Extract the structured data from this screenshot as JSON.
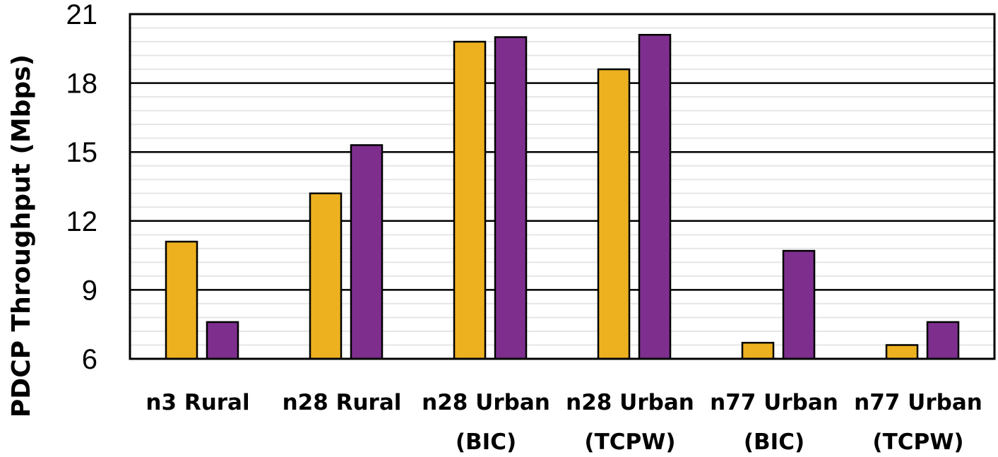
{
  "chart_data": {
    "type": "bar",
    "title": "",
    "xlabel": "",
    "ylabel": "PDCP Throughput (Mbps)",
    "ylim": [
      6,
      21
    ],
    "yticks": [
      6,
      9,
      12,
      15,
      18,
      21
    ],
    "categories": [
      [
        "n3 Rural"
      ],
      [
        "n28 Rural"
      ],
      [
        "n28 Urban",
        "(BIC)"
      ],
      [
        "n28 Urban",
        "(TCPW)"
      ],
      [
        "n77 Urban",
        "(BIC)"
      ],
      [
        "n77 Urban",
        "(TCPW)"
      ]
    ],
    "series": [
      {
        "color": "#EDB120",
        "values": [
          11.1,
          13.2,
          19.8,
          18.6,
          6.7,
          6.6
        ]
      },
      {
        "color": "#7E2F8E",
        "values": [
          7.6,
          15.3,
          20.0,
          20.1,
          10.7,
          7.6
        ]
      }
    ],
    "grid": true,
    "legend": "none"
  }
}
